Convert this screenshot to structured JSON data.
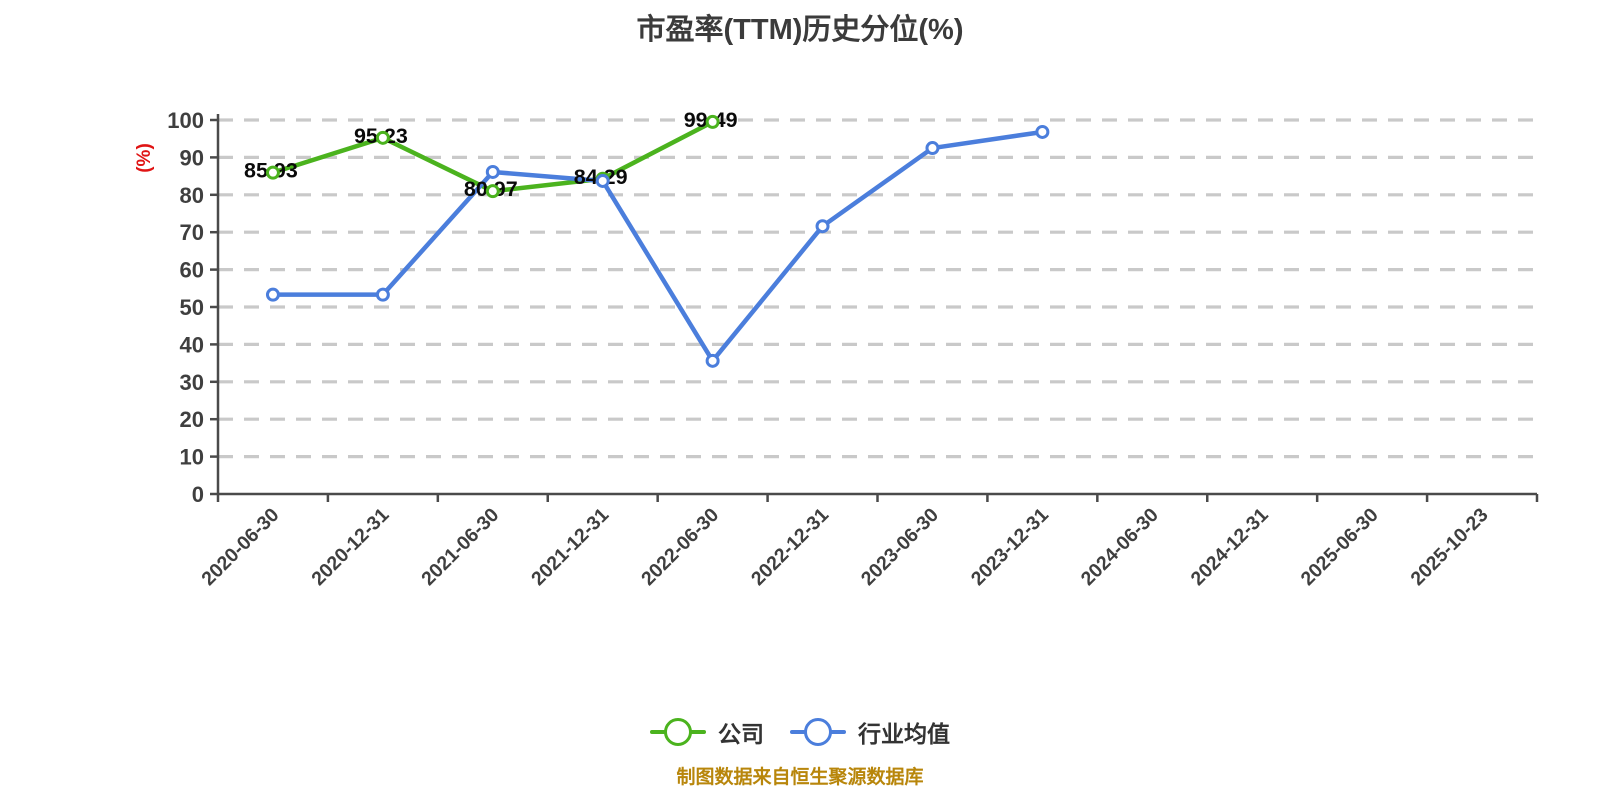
{
  "title": "市盈率(TTM)历史分位(%)",
  "y_axis_name": "(%)",
  "footer": "制图数据来自恒生聚源数据库",
  "legend": {
    "items": [
      {
        "label": "公司",
        "color": "#4bb31e"
      },
      {
        "label": "行业均值",
        "color": "#4b7edc"
      }
    ]
  },
  "colors": {
    "company": "#4bb31e",
    "industry": "#4b7edc",
    "grid": "#c9c9c9",
    "axis": "#4a4a4a",
    "tick_label": "#3f3f3f",
    "value_label": "#0a0a0a",
    "y_axis_name": "#e01414",
    "footer": "#b8860b",
    "title": "#3b3b3b",
    "marker_fill": "#ffffff"
  },
  "chart_data": {
    "type": "line",
    "title": "市盈率(TTM)历史分位(%)",
    "xlabel": "",
    "ylabel": "(%)",
    "ylim": [
      0,
      100
    ],
    "y_tick_step": 10,
    "grid": "horizontal-dashed",
    "legend_position": "bottom",
    "categories": [
      "2020-06-30",
      "2020-12-31",
      "2021-06-30",
      "2021-12-31",
      "2022-06-30",
      "2022-12-31",
      "2023-06-30",
      "2023-12-31",
      "2024-06-30",
      "2024-12-31",
      "2025-06-30",
      "2025-10-23"
    ],
    "series": [
      {
        "name": "公司",
        "color": "#4bb31e",
        "values": [
          85.93,
          95.23,
          80.97,
          84.29,
          99.49,
          null,
          null,
          null,
          null,
          null,
          null,
          null
        ],
        "point_labels": [
          "85.93",
          "95.23",
          "80.97",
          "84.29",
          "99.49",
          null,
          null,
          null,
          null,
          null,
          null,
          null
        ]
      },
      {
        "name": "行业均值",
        "color": "#4b7edc",
        "values": [
          53.3,
          53.3,
          86.1,
          83.7,
          35.6,
          71.6,
          92.5,
          96.8,
          null,
          null,
          null,
          null
        ],
        "point_labels": [
          null,
          null,
          null,
          null,
          null,
          null,
          null,
          null,
          null,
          null,
          null,
          null
        ]
      }
    ]
  }
}
